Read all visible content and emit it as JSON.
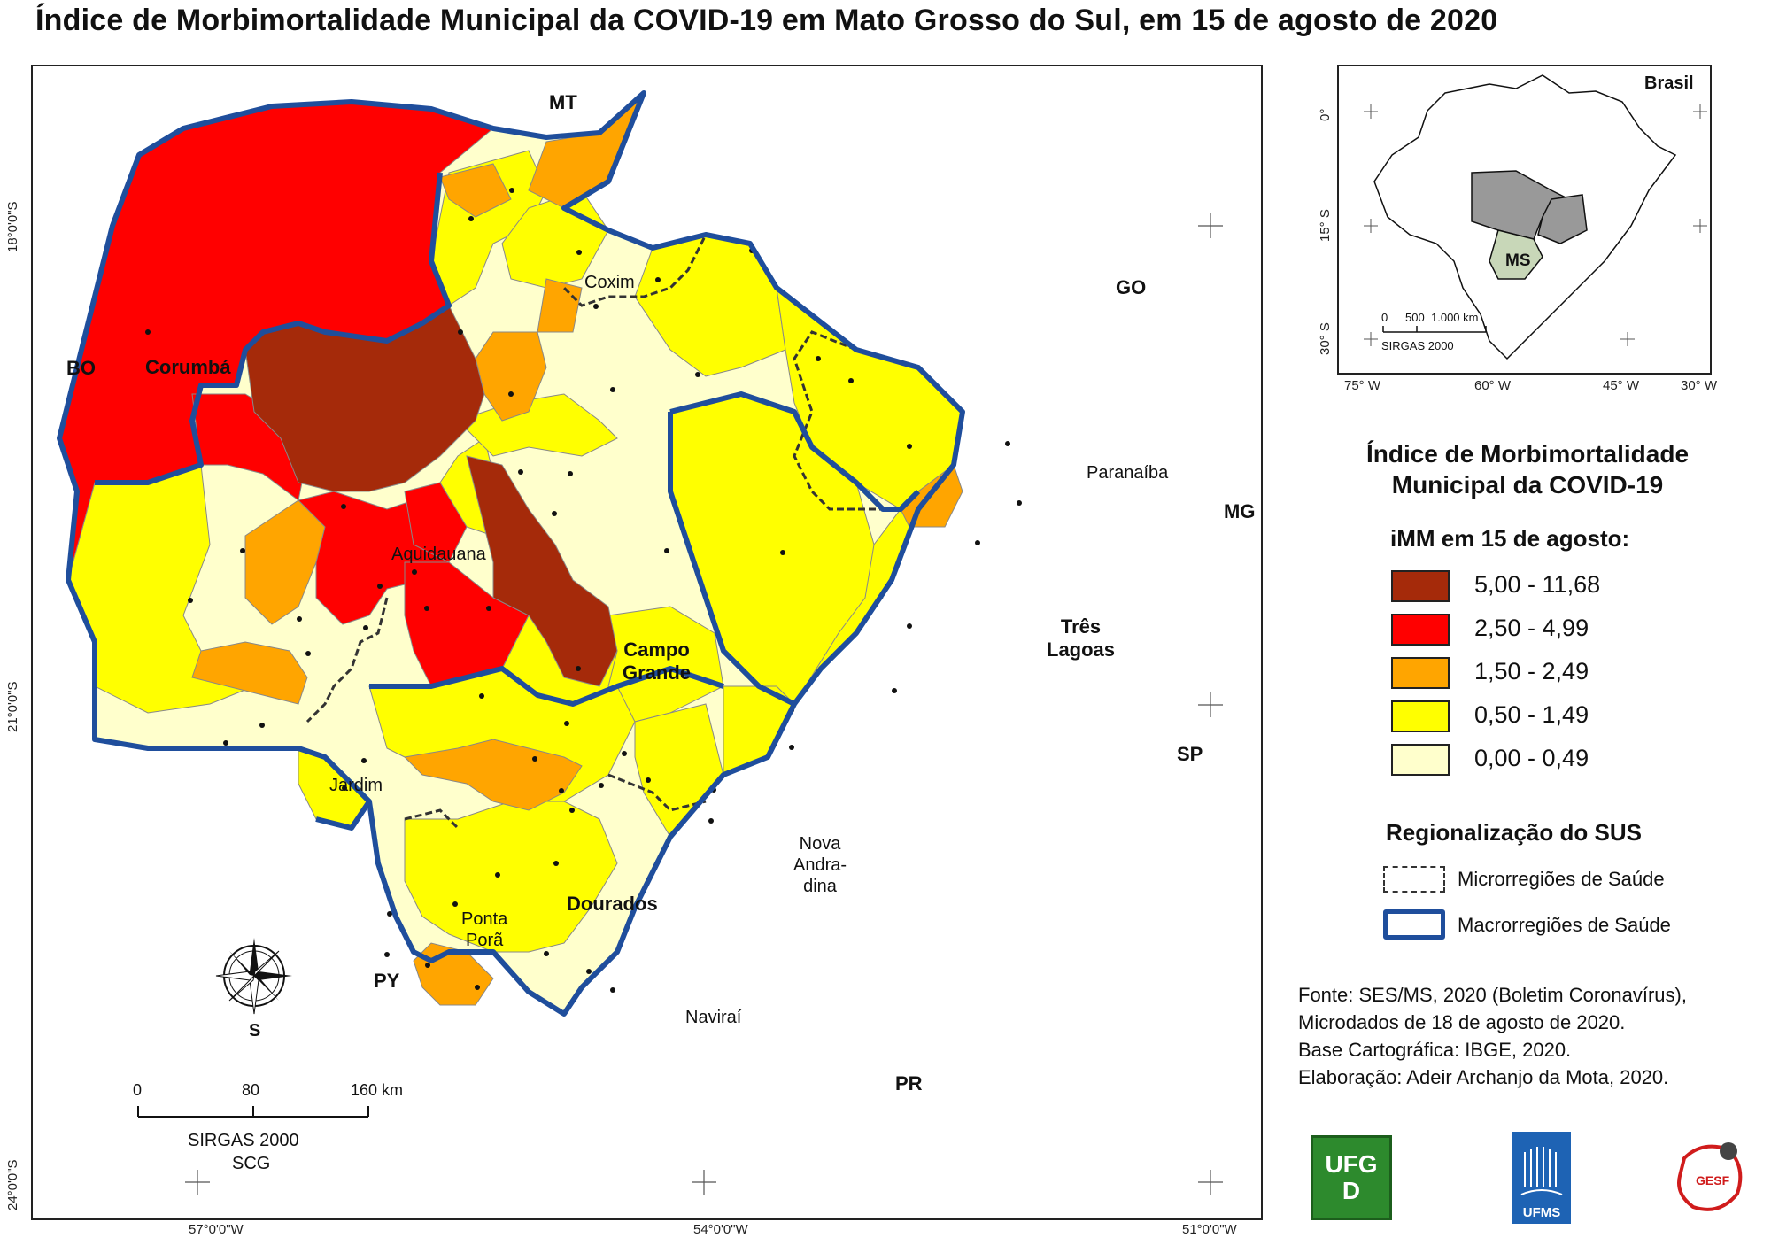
{
  "title": "Índice de Morbimortalidade Municipal da COVID-19 em Mato Grosso do Sul, em 15 de agosto de 2020",
  "colors": {
    "class_5_00_11_68": "#a52a0a",
    "class_2_50_4_99": "#ff0000",
    "class_1_50_2_49": "#ffa500",
    "class_0_50_1_49": "#ffff00",
    "class_0_00_0_49": "#ffffcc",
    "macro_border": "#1f4e9c",
    "micro_border": "#333333"
  },
  "map": {
    "lat_labels": [
      "18°0'0\"S",
      "21°0'0\"S",
      "24°0'0\"S"
    ],
    "lon_labels": [
      "57°0'0\"W",
      "54°0'0\"W",
      "51°0'0\"W"
    ],
    "neighbors": {
      "mt": "MT",
      "go": "GO",
      "mg": "MG",
      "sp": "SP",
      "pr": "PR",
      "py": "PY",
      "bo": "BO"
    },
    "cities": {
      "corumba": "Corumbá",
      "coxim": "Coxim",
      "aquidauana": "Aquidauana",
      "campo_grande": "Campo\nGrande",
      "paranaiba": "Paranaíba",
      "tres_lagoas": "Três\nLagoas",
      "jardim": "Jardim",
      "dourados": "Dourados",
      "ponta_pora": "Ponta\nPorã",
      "nova_andradina": "Nova\nAndra-\ndina",
      "navirai": "Naviraí"
    },
    "compass_label": "S",
    "scalebar": {
      "ticks": [
        "0",
        "80",
        "160 km"
      ],
      "crs": "SIRGAS 2000",
      "crs2": "SCG"
    }
  },
  "inset": {
    "label": "Brasil",
    "state_label": "MS",
    "lat_labels": [
      "0°",
      "15° S",
      "30° S"
    ],
    "lon_labels": [
      "75° W",
      "60° W",
      "45° W",
      "30° W"
    ],
    "scalebar": {
      "ticks": [
        "0",
        "500",
        "1.000 km"
      ],
      "crs": "SIRGAS 2000"
    }
  },
  "legend": {
    "title_line1": "Índice de Morbimortalidade",
    "title_line2": "Municipal da COVID-19",
    "subtitle": "iMM em 15 de agosto:",
    "classes": [
      {
        "range": "5,00 - 11,68",
        "color": "#a52a0a"
      },
      {
        "range": "2,50 - 4,99",
        "color": "#ff0000"
      },
      {
        "range": "1,50 - 2,49",
        "color": "#ffa500"
      },
      {
        "range": "0,50 - 1,49",
        "color": "#ffff00"
      },
      {
        "range": "0,00 - 0,49",
        "color": "#ffffcc"
      }
    ],
    "region_title": "Regionalização do SUS",
    "micro_label": "Microrregiões de Saúde",
    "macro_label": "Macrorregiões de Saúde"
  },
  "source": {
    "line1": "Fonte: SES/MS, 2020 (Boletim Coronavírus),",
    "line2": "Microdados de 18 de agosto de 2020.",
    "line3": "Base Cartográfica: IBGE, 2020.",
    "line4": "Elaboração: Adeir Archanjo da Mota, 2020."
  },
  "logos": {
    "ufgd": "UFGD",
    "ufms": "UFMS",
    "gesf": "GESF"
  }
}
